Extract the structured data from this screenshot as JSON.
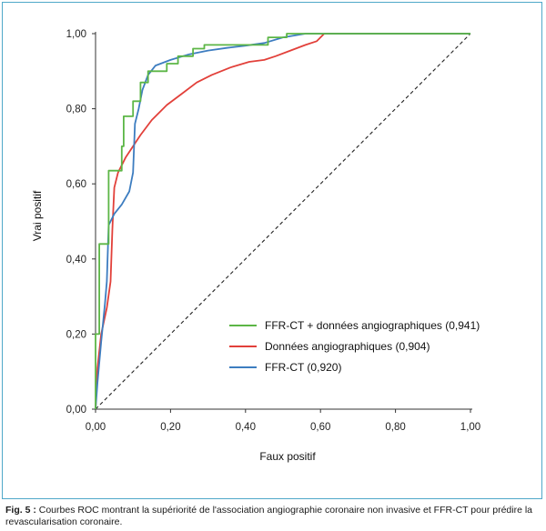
{
  "chart_data": {
    "type": "line",
    "title": "",
    "xlabel": "Faux positif",
    "ylabel": "Vrai positif",
    "xlim": [
      0,
      1
    ],
    "ylim": [
      0,
      1
    ],
    "x_ticks": [
      "0,00",
      "0,20",
      "0,40",
      "0,60",
      "0,80",
      "1,00"
    ],
    "y_ticks": [
      "0,00",
      "0,20",
      "0,40",
      "0,60",
      "0,80",
      "1,00"
    ],
    "grid": false,
    "legend_position": "bottom-right",
    "reference_line": {
      "style": "dashed",
      "color": "#222222",
      "points": [
        [
          0,
          0
        ],
        [
          1,
          1
        ]
      ]
    },
    "series": [
      {
        "name": "FFR-CT + données angiographiques (0,941)",
        "color": "#5cb646",
        "step": true,
        "points": [
          [
            0,
            0
          ],
          [
            0,
            0.2
          ],
          [
            0.01,
            0.2
          ],
          [
            0.01,
            0.44
          ],
          [
            0.035,
            0.44
          ],
          [
            0.035,
            0.635
          ],
          [
            0.07,
            0.635
          ],
          [
            0.07,
            0.7
          ],
          [
            0.075,
            0.7
          ],
          [
            0.075,
            0.78
          ],
          [
            0.1,
            0.78
          ],
          [
            0.1,
            0.82
          ],
          [
            0.12,
            0.82
          ],
          [
            0.12,
            0.87
          ],
          [
            0.14,
            0.87
          ],
          [
            0.14,
            0.9
          ],
          [
            0.19,
            0.9
          ],
          [
            0.19,
            0.92
          ],
          [
            0.22,
            0.92
          ],
          [
            0.22,
            0.94
          ],
          [
            0.26,
            0.94
          ],
          [
            0.26,
            0.96
          ],
          [
            0.29,
            0.96
          ],
          [
            0.29,
            0.97
          ],
          [
            0.46,
            0.97
          ],
          [
            0.46,
            0.99
          ],
          [
            0.51,
            0.99
          ],
          [
            0.51,
            1.0
          ],
          [
            1.0,
            1.0
          ]
        ]
      },
      {
        "name": "Données angiographiques (0,904)",
        "color": "#e2403a",
        "step": false,
        "points": [
          [
            0,
            0
          ],
          [
            0.005,
            0.11
          ],
          [
            0.015,
            0.2
          ],
          [
            0.03,
            0.27
          ],
          [
            0.04,
            0.34
          ],
          [
            0.045,
            0.48
          ],
          [
            0.05,
            0.59
          ],
          [
            0.06,
            0.63
          ],
          [
            0.08,
            0.67
          ],
          [
            0.1,
            0.7
          ],
          [
            0.12,
            0.73
          ],
          [
            0.15,
            0.77
          ],
          [
            0.19,
            0.81
          ],
          [
            0.23,
            0.84
          ],
          [
            0.27,
            0.87
          ],
          [
            0.31,
            0.89
          ],
          [
            0.36,
            0.91
          ],
          [
            0.41,
            0.925
          ],
          [
            0.45,
            0.93
          ],
          [
            0.48,
            0.94
          ],
          [
            0.52,
            0.955
          ],
          [
            0.56,
            0.97
          ],
          [
            0.59,
            0.98
          ],
          [
            0.61,
            1.0
          ],
          [
            1.0,
            1.0
          ]
        ]
      },
      {
        "name": "FFR-CT (0,920)",
        "color": "#3d7dc0",
        "step": false,
        "points": [
          [
            0,
            0
          ],
          [
            0.005,
            0.07
          ],
          [
            0.015,
            0.18
          ],
          [
            0.025,
            0.28
          ],
          [
            0.03,
            0.34
          ],
          [
            0.035,
            0.49
          ],
          [
            0.05,
            0.52
          ],
          [
            0.07,
            0.545
          ],
          [
            0.09,
            0.58
          ],
          [
            0.1,
            0.63
          ],
          [
            0.105,
            0.76
          ],
          [
            0.115,
            0.8
          ],
          [
            0.125,
            0.85
          ],
          [
            0.14,
            0.89
          ],
          [
            0.16,
            0.915
          ],
          [
            0.2,
            0.93
          ],
          [
            0.25,
            0.945
          ],
          [
            0.3,
            0.955
          ],
          [
            0.35,
            0.962
          ],
          [
            0.4,
            0.968
          ],
          [
            0.45,
            0.975
          ],
          [
            0.5,
            0.99
          ],
          [
            0.56,
            1.0
          ],
          [
            1.0,
            1.0
          ]
        ]
      }
    ]
  },
  "caption": {
    "label": "Fig. 5 :",
    "text": " Courbes ROC montrant la supériorité de l'association angiographie coronaire non invasive et FFR-CT pour prédire la revascularisation coronaire."
  }
}
